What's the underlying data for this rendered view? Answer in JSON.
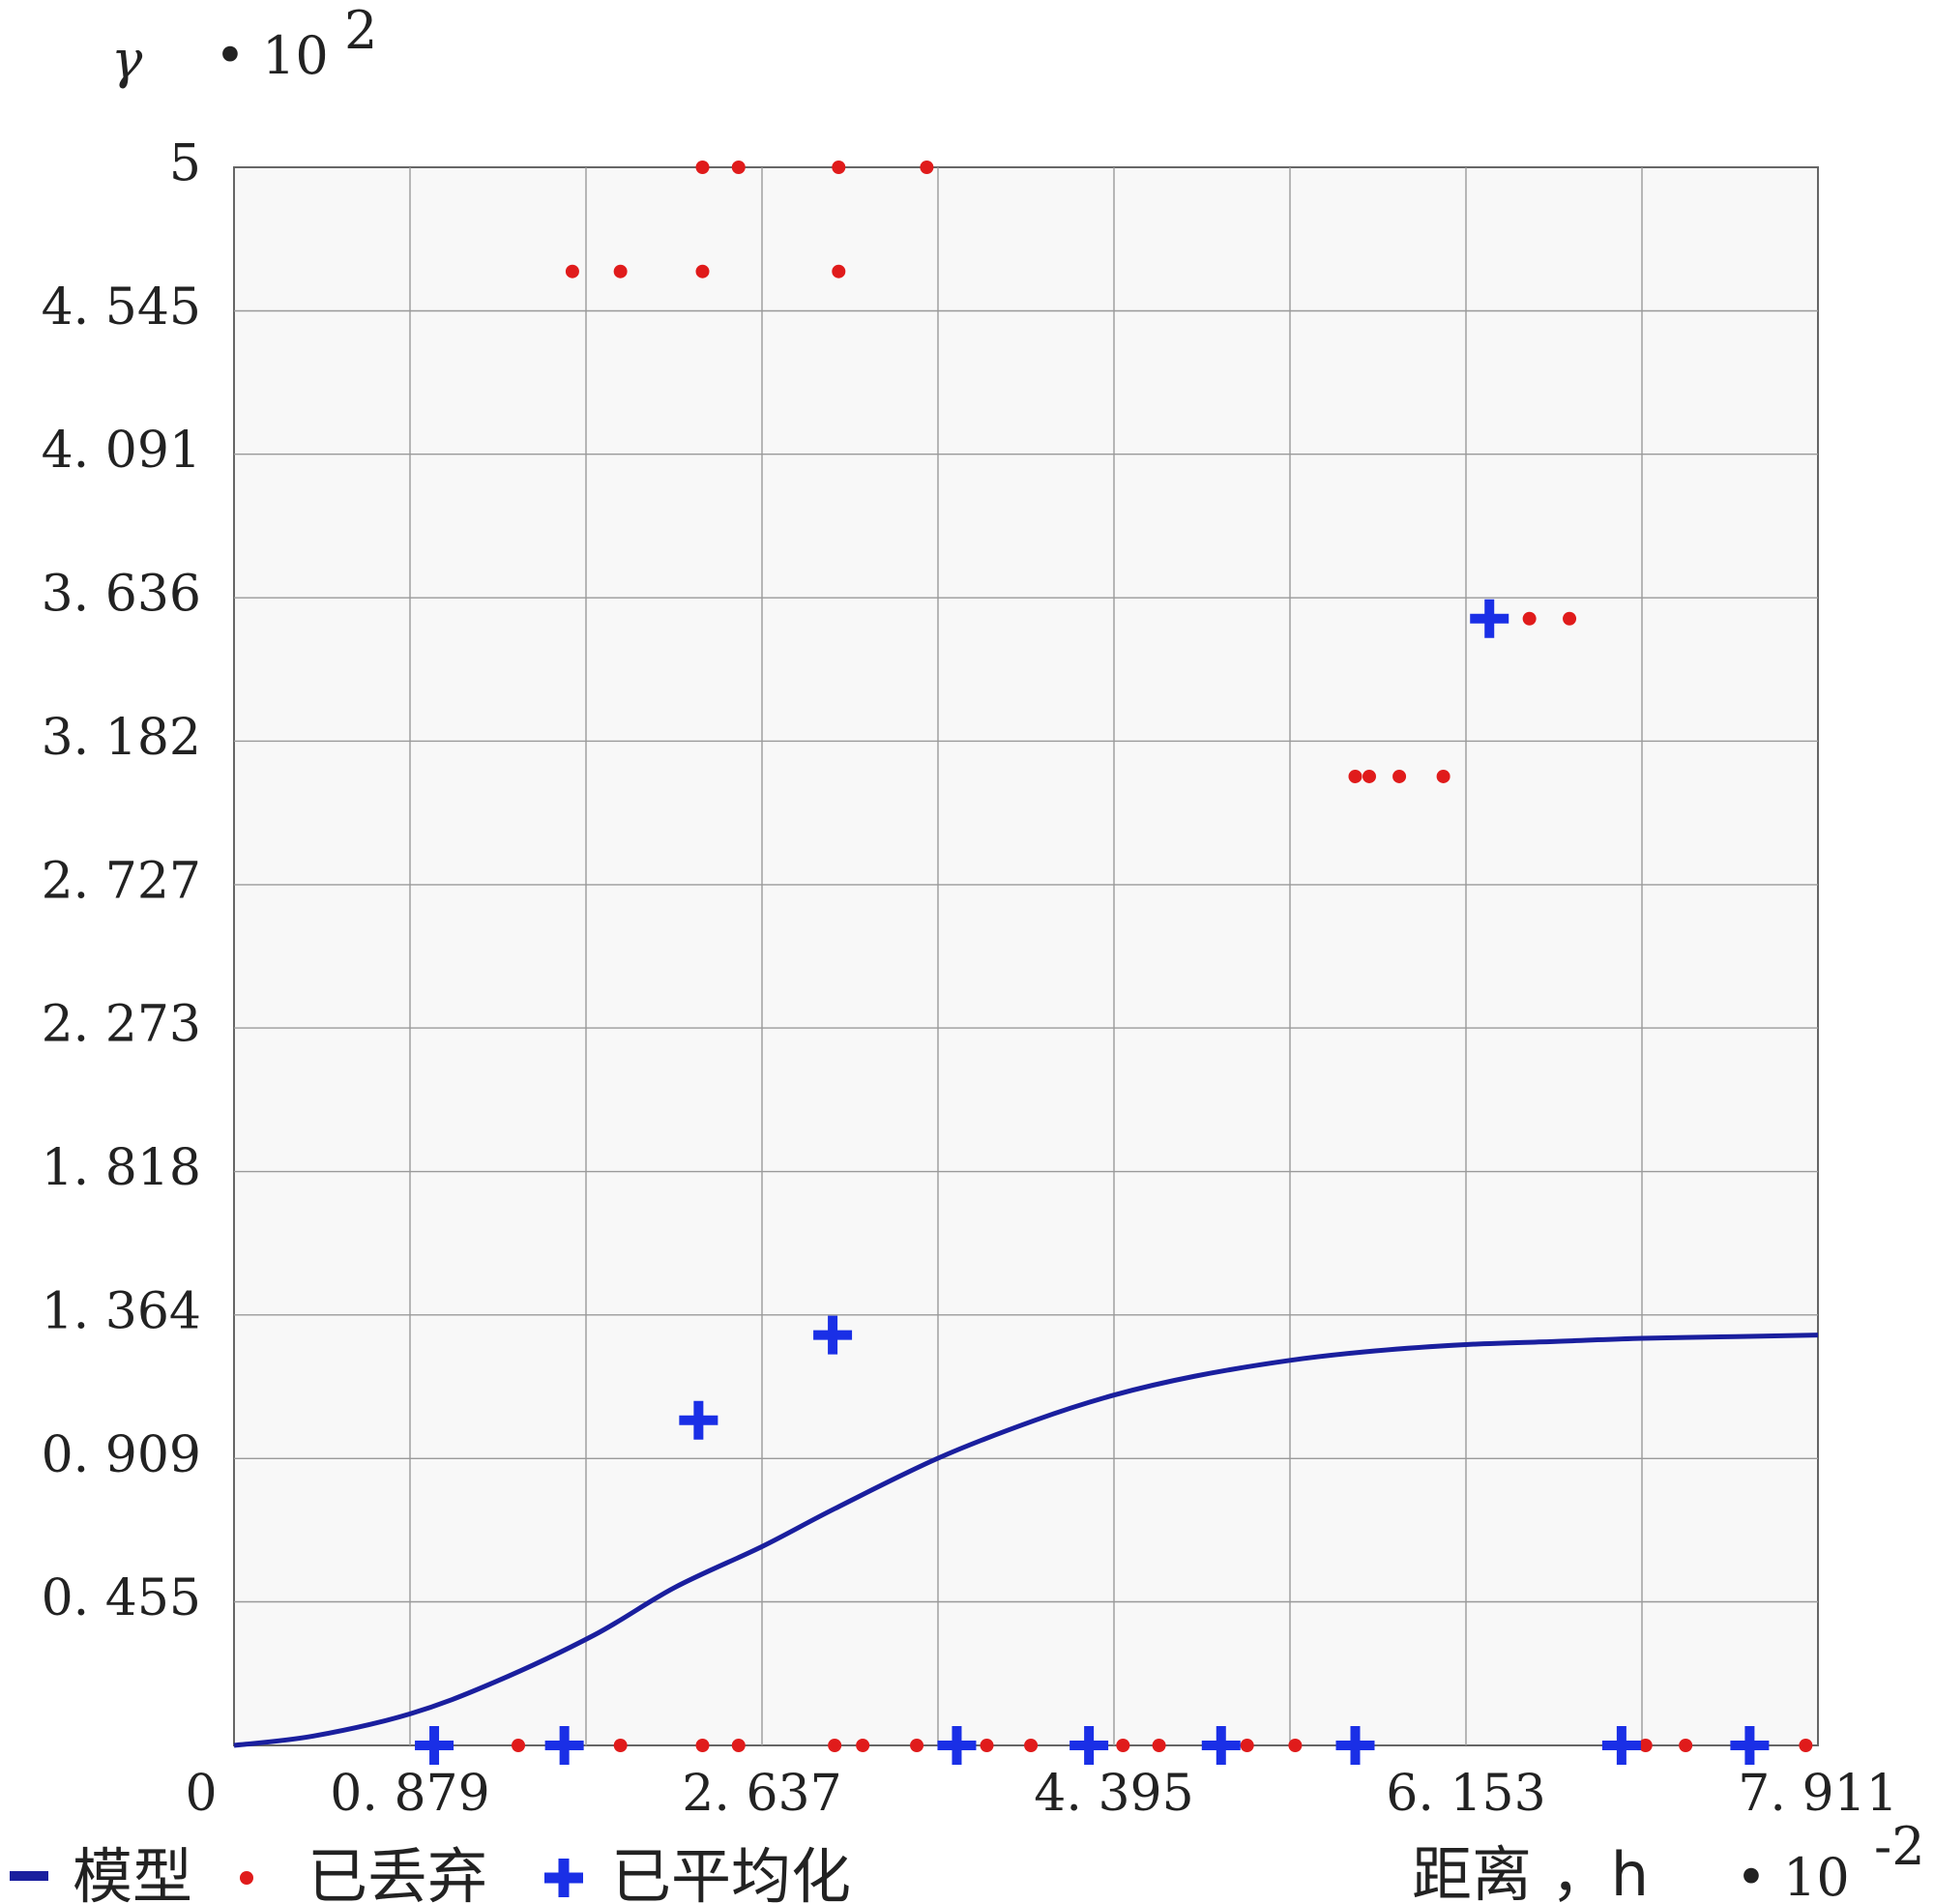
{
  "chart_data": {
    "type": "scatter",
    "xlim": [
      0,
      7.911
    ],
    "ylim": [
      0,
      5
    ],
    "x_ticks": [
      "0",
      "0. 879",
      "2. 637",
      "4. 395",
      "6. 153",
      "7. 911"
    ],
    "x_tick_values": [
      0,
      0.879,
      2.637,
      4.395,
      6.153,
      7.911
    ],
    "y_ticks": [
      "0. 455",
      "0. 909",
      "1. 364",
      "1. 818",
      "2. 273",
      "2. 727",
      "3. 182",
      "3. 636",
      "4. 091",
      "4. 545",
      "5"
    ],
    "y_tick_values": [
      0.455,
      0.909,
      1.364,
      1.818,
      2.273,
      2.727,
      3.182,
      3.636,
      4.091,
      4.545,
      5
    ],
    "x_grid": [
      0.879,
      1.758,
      2.637,
      3.516,
      4.395,
      5.274,
      6.153,
      7.032,
      7.911
    ],
    "grid": true,
    "ylabel": {
      "symbol": "γ",
      "multiplier": "• 10",
      "exponent": "2"
    },
    "xlabel": {
      "text": "距离 ，h",
      "multiplier": "• 10",
      "exponent": "-2"
    },
    "legend": [
      {
        "label": "模型",
        "marker": "line",
        "color": "#1a1f9e"
      },
      {
        "label": "已丢弃",
        "marker": "dot",
        "color": "#e01b1b"
      },
      {
        "label": "已平均化",
        "marker": "plus",
        "color": "#1a2fe6"
      }
    ],
    "series": [
      {
        "name": "模型",
        "kind": "line",
        "color": "#1a1f9e",
        "x": [
          0,
          0.4,
          0.879,
          1.3,
          1.8,
          2.2,
          2.637,
          3.0,
          3.516,
          4.0,
          4.395,
          4.8,
          5.274,
          5.7,
          6.153,
          6.6,
          7.032,
          7.5,
          7.911
        ],
        "y": [
          0,
          0.03,
          0.1,
          0.2,
          0.35,
          0.5,
          0.63,
          0.75,
          0.91,
          1.03,
          1.11,
          1.17,
          1.22,
          1.25,
          1.27,
          1.28,
          1.29,
          1.295,
          1.3
        ]
      },
      {
        "name": "已丢弃",
        "kind": "dot",
        "color": "#e01b1b",
        "x": [
          2.34,
          2.52,
          3.02,
          3.46,
          1.69,
          1.93,
          2.34,
          3.02,
          5.6,
          5.67,
          5.82,
          6.04,
          6.47,
          6.67,
          1.42,
          1.93,
          2.34,
          2.52,
          3.0,
          3.14,
          3.41,
          3.76,
          3.98,
          4.44,
          4.62,
          5.06,
          5.3,
          7.05,
          7.25,
          7.85
        ],
        "y": [
          5,
          5,
          5,
          5,
          4.67,
          4.67,
          4.67,
          4.67,
          3.07,
          3.07,
          3.07,
          3.07,
          3.57,
          3.57,
          0,
          0,
          0,
          0,
          0,
          0,
          0,
          0,
          0,
          0,
          0,
          0,
          0,
          0,
          0,
          0
        ]
      },
      {
        "name": "已平均化",
        "kind": "plus",
        "color": "#1a2fe6",
        "x": [
          1.0,
          1.65,
          2.32,
          2.99,
          3.61,
          4.27,
          4.93,
          5.6,
          6.27,
          6.93,
          7.57
        ],
        "y": [
          0,
          0,
          1.03,
          1.3,
          0,
          0,
          0,
          0,
          3.57,
          0,
          0
        ]
      }
    ]
  }
}
